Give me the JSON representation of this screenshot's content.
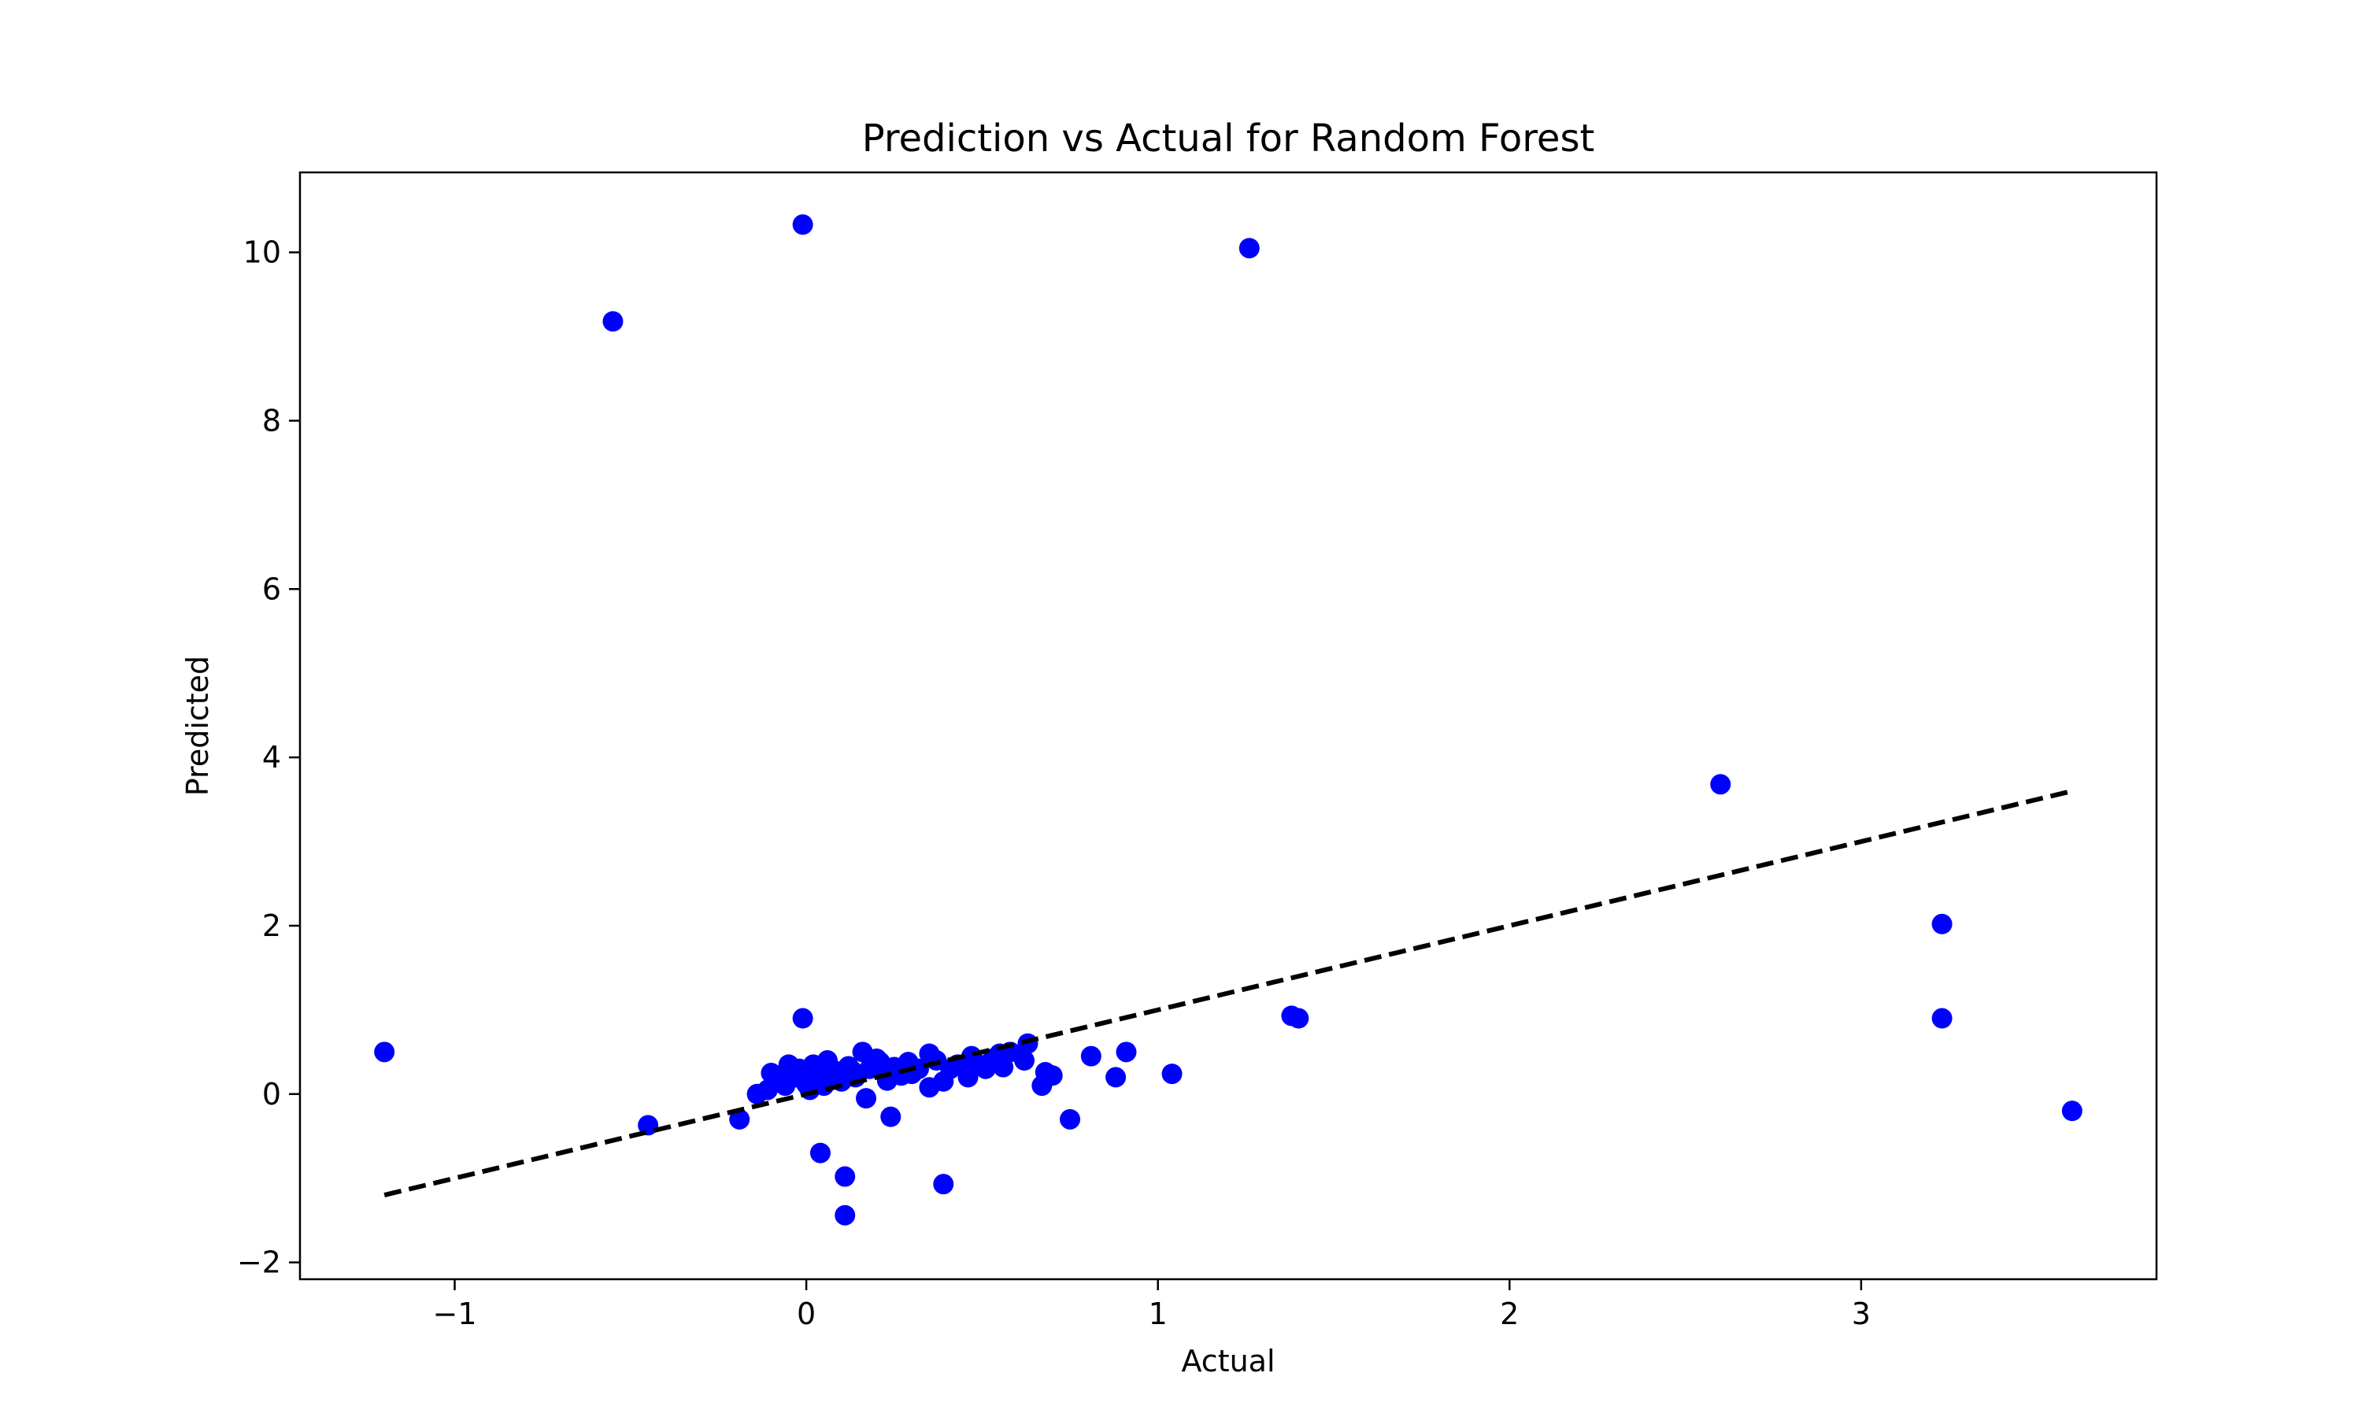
{
  "chart_data": {
    "type": "scatter",
    "title": "Prediction vs Actual for Random Forest",
    "xlabel": "Actual",
    "ylabel": "Predicted",
    "xlim": [
      -1.44,
      3.84
    ],
    "ylim": [
      -2.2,
      10.95
    ],
    "xticks": [
      -1,
      0,
      1,
      2,
      3
    ],
    "xtick_labels": [
      "−1",
      "0",
      "1",
      "2",
      "3"
    ],
    "yticks": [
      -2,
      0,
      2,
      4,
      6,
      8,
      10
    ],
    "ytick_labels": [
      "−2",
      "0",
      "2",
      "4",
      "6",
      "8",
      "10"
    ],
    "grid": false,
    "legend": false,
    "point_color": "#0000ff",
    "reference_line": {
      "style": "dashed",
      "color": "#000000",
      "x": [
        -1.2,
        3.6
      ],
      "y": [
        -1.2,
        3.6
      ]
    },
    "points": [
      [
        -1.2,
        0.5
      ],
      [
        -0.55,
        9.18
      ],
      [
        -0.45,
        -0.37
      ],
      [
        -0.19,
        -0.3
      ],
      [
        -0.01,
        10.33
      ],
      [
        -0.01,
        0.9
      ],
      [
        1.26,
        10.05
      ],
      [
        2.6,
        3.68
      ],
      [
        1.38,
        0.93
      ],
      [
        1.4,
        0.9
      ],
      [
        3.23,
        2.02
      ],
      [
        3.23,
        0.9
      ],
      [
        3.6,
        -0.2
      ],
      [
        0.04,
        -0.7
      ],
      [
        0.11,
        -0.98
      ],
      [
        0.11,
        -1.44
      ],
      [
        0.39,
        -1.07
      ],
      [
        0.24,
        -0.27
      ],
      [
        0.75,
        -0.3
      ],
      [
        0.17,
        -0.05
      ],
      [
        0.81,
        0.45
      ],
      [
        0.88,
        0.2
      ],
      [
        0.91,
        0.5
      ],
      [
        1.04,
        0.24
      ],
      [
        0.67,
        0.1
      ],
      [
        0.68,
        0.26
      ],
      [
        0.7,
        0.22
      ],
      [
        0.63,
        0.6
      ],
      [
        0.62,
        0.4
      ],
      [
        0.56,
        0.32
      ],
      [
        0.55,
        0.48
      ],
      [
        0.51,
        0.3
      ],
      [
        0.47,
        0.45
      ],
      [
        0.46,
        0.2
      ],
      [
        0.43,
        0.35
      ],
      [
        0.39,
        0.15
      ],
      [
        0.37,
        0.4
      ],
      [
        0.35,
        0.48
      ],
      [
        0.35,
        0.08
      ],
      [
        0.32,
        0.3
      ],
      [
        0.29,
        0.38
      ],
      [
        0.27,
        0.22
      ],
      [
        0.25,
        0.32
      ],
      [
        0.23,
        0.16
      ],
      [
        0.21,
        0.38
      ],
      [
        0.2,
        0.42
      ],
      [
        0.18,
        0.3
      ],
      [
        0.16,
        0.5
      ],
      [
        0.14,
        0.2
      ],
      [
        0.12,
        0.33
      ],
      [
        0.1,
        0.15
      ],
      [
        0.08,
        0.28
      ],
      [
        0.06,
        0.4
      ],
      [
        0.05,
        0.1
      ],
      [
        0.03,
        0.25
      ],
      [
        0.02,
        0.35
      ],
      [
        0.0,
        0.12
      ],
      [
        -0.02,
        0.3
      ],
      [
        -0.03,
        0.2
      ],
      [
        -0.05,
        0.35
      ],
      [
        -0.06,
        0.1
      ],
      [
        -0.08,
        0.22
      ],
      [
        -0.1,
        0.25
      ],
      [
        -0.11,
        0.05
      ],
      [
        -0.14,
        0.0
      ],
      [
        0.01,
        0.05
      ],
      [
        0.09,
        0.22
      ],
      [
        0.13,
        0.28
      ],
      [
        0.22,
        0.26
      ],
      [
        0.3,
        0.24
      ],
      [
        0.41,
        0.3
      ],
      [
        0.48,
        0.38
      ],
      [
        0.53,
        0.42
      ],
      [
        0.58,
        0.5
      ],
      [
        -0.04,
        0.28
      ]
    ]
  }
}
